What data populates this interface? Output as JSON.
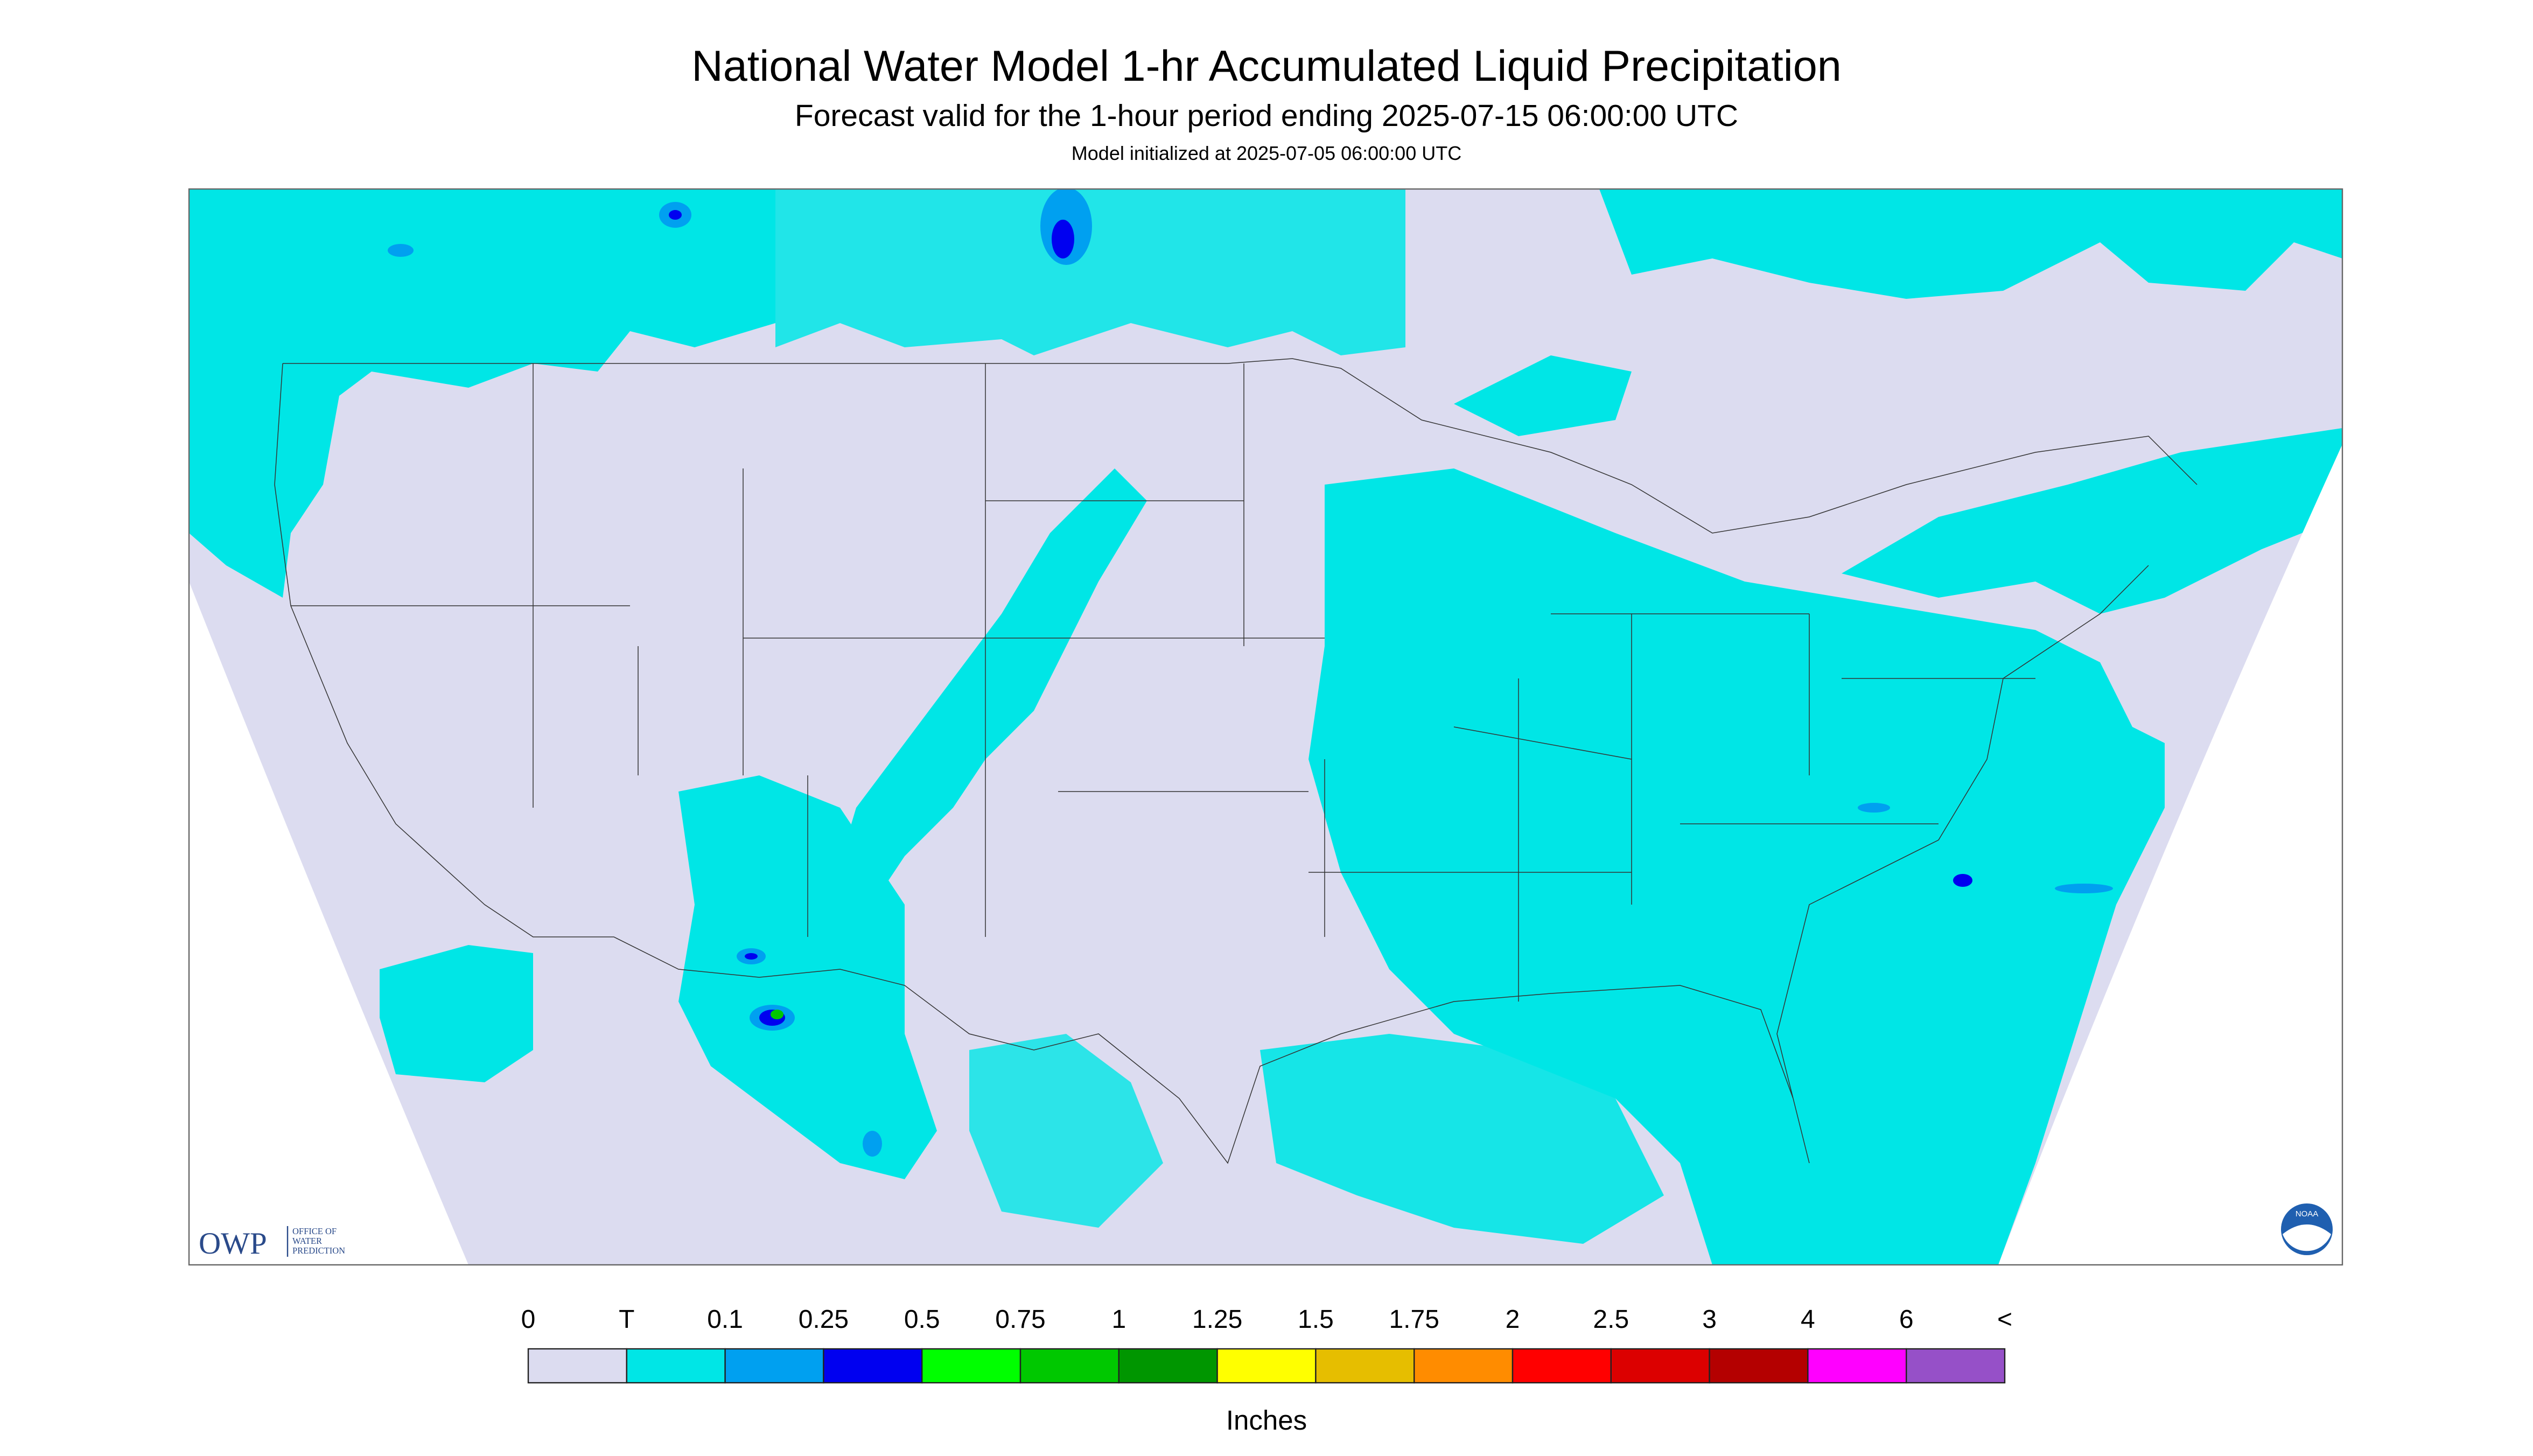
{
  "header": {
    "title": "National Water Model 1-hr Accumulated Liquid Precipitation",
    "subtitle": "Forecast valid for the 1-hour period ending 2025-07-15 06:00:00 UTC",
    "init": "Model initialized at 2025-07-05 06:00:00 UTC"
  },
  "legend": {
    "labels": [
      "0",
      "T",
      "0.1",
      "0.25",
      "0.5",
      "0.75",
      "1",
      "1.25",
      "1.5",
      "1.75",
      "2",
      "2.5",
      "3",
      "4",
      "6",
      "<"
    ],
    "colors": [
      "#dcdcf0",
      "#00e6e6",
      "#00a0f0",
      "#0000f0",
      "#00ff00",
      "#00c800",
      "#009600",
      "#ffff00",
      "#e6be00",
      "#ff8c00",
      "#ff0000",
      "#dc0000",
      "#b40000",
      "#ff00ff",
      "#9650c8"
    ],
    "unit": "Inches"
  },
  "logo": {
    "owp": "OWP",
    "lines": [
      "OFFICE OF",
      "WATER",
      "PREDICTION"
    ],
    "noaa": "NOAA"
  }
}
